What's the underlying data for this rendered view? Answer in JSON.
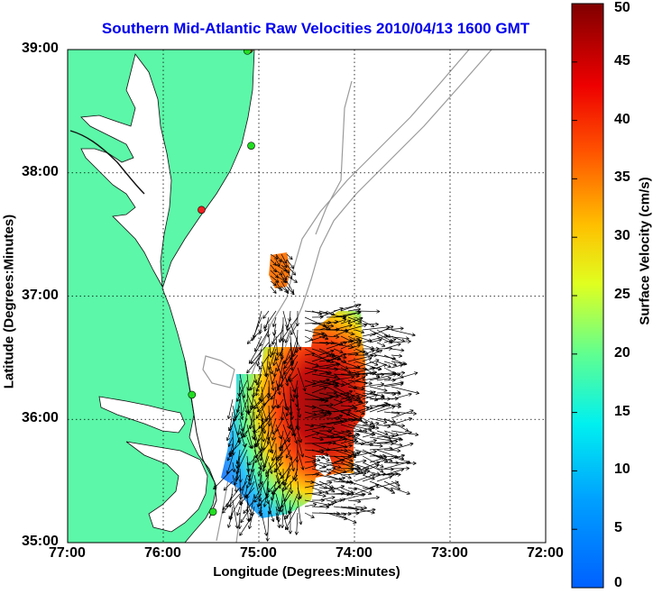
{
  "title": "Southern Mid-Atlantic Raw Velocities 2010/04/13 1600 GMT",
  "axes": {
    "xlabel": "Longitude (Degrees:Minutes)",
    "ylabel": "Latitude (Degrees:Minutes)",
    "x_ticks": [
      "77:00",
      "76:00",
      "75:00",
      "74:00",
      "73:00",
      "72:00"
    ],
    "y_ticks": [
      "39:00",
      "38:00",
      "37:00",
      "36:00",
      "35:00"
    ],
    "lon_range": [
      -77,
      -72
    ],
    "lat_range": [
      35,
      39
    ],
    "grid": "dotted"
  },
  "colorbar": {
    "label": "Surface Velocity (cm/s)",
    "ticks": [
      "50",
      "45",
      "40",
      "35",
      "30",
      "25",
      "20",
      "15",
      "10",
      "5",
      "0"
    ],
    "range": [
      0,
      50
    ],
    "colormap": "jet"
  },
  "colors": {
    "land": "#5cf7a8",
    "water": "#ffffff",
    "title": "#0000ee",
    "bathymetry": "#9a9a9a",
    "station_green": "#22dd22",
    "station_red": "#ee2222"
  },
  "stations": [
    {
      "lon": -75.1,
      "lat": 39.0,
      "color": "red"
    },
    {
      "lon": -75.12,
      "lat": 38.99,
      "color": "green"
    },
    {
      "lon": -75.08,
      "lat": 38.22,
      "color": "green"
    },
    {
      "lon": -75.6,
      "lat": 37.7,
      "color": "red"
    },
    {
      "lon": -75.7,
      "lat": 36.2,
      "color": "green"
    },
    {
      "lon": -75.48,
      "lat": 35.25,
      "color": "green"
    }
  ]
}
